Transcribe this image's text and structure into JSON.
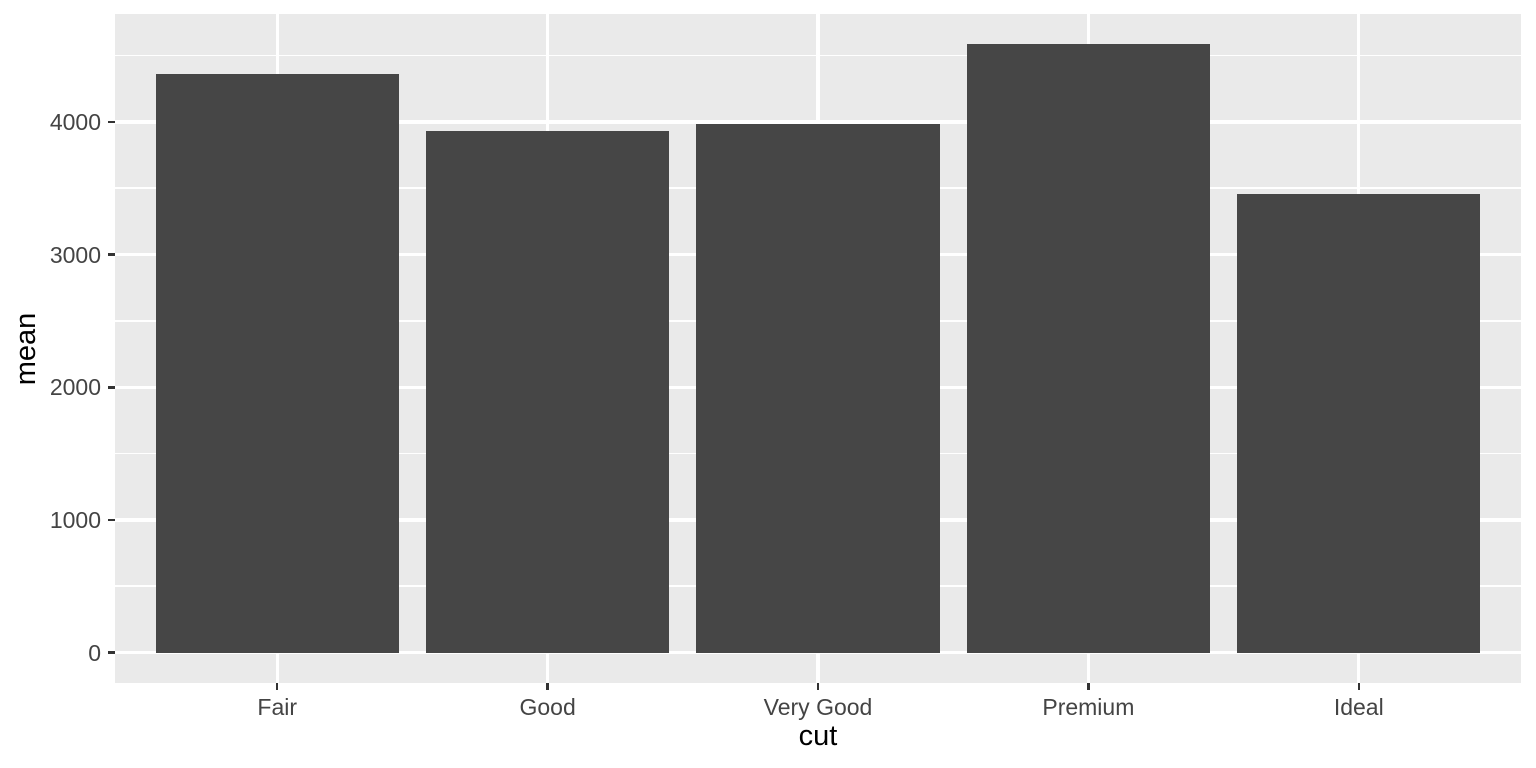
{
  "chart_data": {
    "type": "bar",
    "title": "",
    "xlabel": "cut",
    "ylabel": "mean",
    "categories": [
      "Fair",
      "Good",
      "Very Good",
      "Premium",
      "Ideal"
    ],
    "values": [
      4358.76,
      3928.86,
      3981.76,
      4584.26,
      3457.54
    ],
    "y_ticks": [
      0,
      1000,
      2000,
      3000,
      4000
    ],
    "y_minor_gridlines": [
      500,
      1500,
      2500,
      3500,
      4500
    ],
    "ylim": [
      -229.2,
      4813.5
    ],
    "bar_width_fraction": 0.9,
    "band_expand": 0.6,
    "grid": "on",
    "legend": "none",
    "colors": {
      "bar_fill": "#464646",
      "panel_background": "#EAEAEA",
      "gridline": "#FFFFFF",
      "tick_mark": "#333333",
      "axis_text": "#444444",
      "axis_title": "#000000",
      "figure_background": "#FFFFFF"
    }
  }
}
